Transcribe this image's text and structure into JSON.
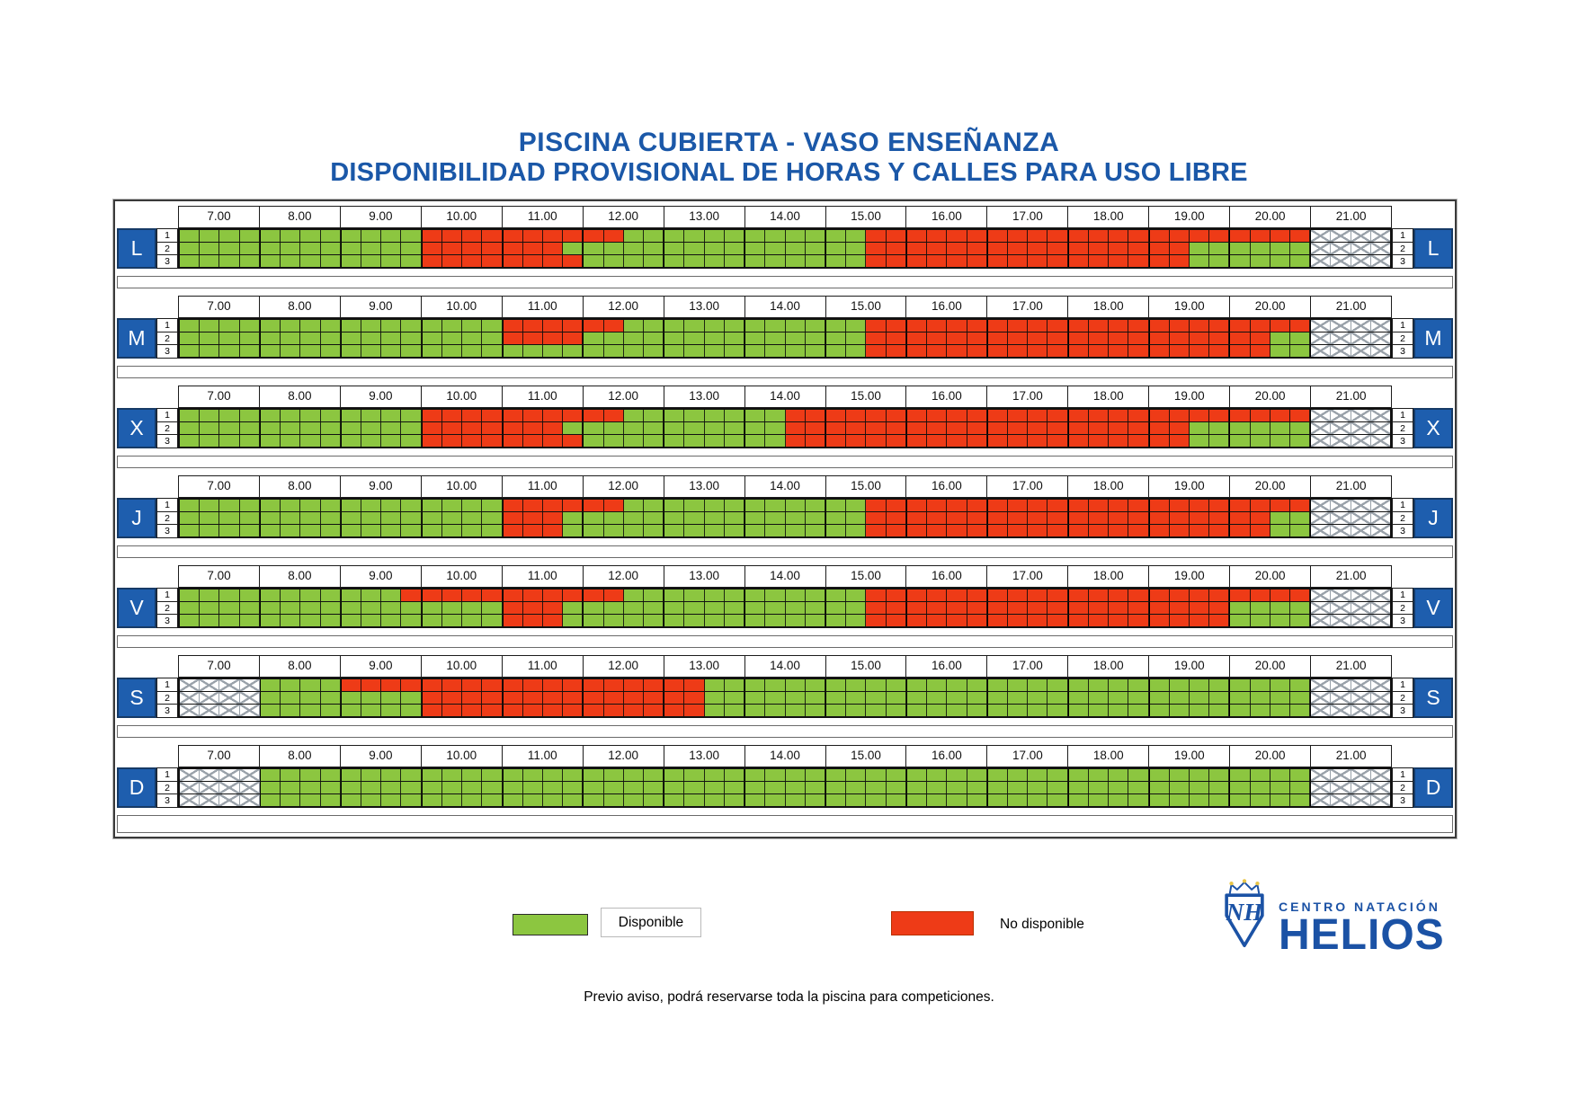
{
  "title": {
    "line1": "PISCINA CUBIERTA - VASO ENSEÑANZA",
    "line2": "DISPONIBILIDAD PROVISIONAL DE HORAS Y CALLES PARA USO LIBRE"
  },
  "colors": {
    "available": "#8CC640",
    "unavailable": "#EE3B17",
    "day_box": "#1E5EAE",
    "title": "#1B58A8",
    "logo": "#1B52A5"
  },
  "hours": [
    "7.00",
    "8.00",
    "9.00",
    "10.00",
    "11.00",
    "12.00",
    "13.00",
    "14.00",
    "15.00",
    "16.00",
    "17.00",
    "18.00",
    "19.00",
    "20.00",
    "21.00"
  ],
  "lanes": [
    "1",
    "2",
    "3"
  ],
  "cell_codes": {
    "G": "available",
    "R": "unavailable",
    "H": "hatched-closed"
  },
  "days": [
    {
      "letter": "L",
      "lanes": [
        "GGGGGGGGGGGGRRRRRRRRRRGGGGGGGGGGGGRRRRRRRRRRRRRRRRRRRRRRHHHH",
        "GGGGGGGGGGGGRRRRRRRGGGGGGGGGGGGGGGRRRRRRRRRRRRRRRRGGGGGGHHHH",
        "GGGGGGGGGGGGRRRRRRRRGGGGGGGGGGGGGGRRRRRRRRRRRRRRRRGGGGGGHHHH"
      ]
    },
    {
      "letter": "M",
      "lanes": [
        "GGGGGGGGGGGGGGGGRRRRRRGGGGGGGGGGGGRRRRRRRRRRRRRRRRRRRRRRHHHH",
        "GGGGGGGGGGGGGGGGRRRRGGGGGGGGGGGGGGRRRRRRRRRRRRRRRRRRRRGGHHHH",
        "GGGGGGGGGGGGGGGGGGGGGGGGGGGGGGGGGGRRRRRRRRRRRRRRRRRRRRGGHHHH"
      ]
    },
    {
      "letter": "X",
      "lanes": [
        "GGGGGGGGGGGGRRRRRRRRRRGGGGGGGGRRRRRRRRRRRRRRRRRRRRRRRRRRHHHH",
        "GGGGGGGGGGGGRRRRRRRGGGGGGGGGGGRRRRRRRRRRRRRRRRRRRRGGGGGGHHHH",
        "GGGGGGGGGGGGRRRRRRRRGGGGGGGGGGRRRRRRRRRRRRRRRRRRRRGGGGGGHHHH"
      ]
    },
    {
      "letter": "J",
      "lanes": [
        "GGGGGGGGGGGGGGGGRRRRRRGGGGGGGGGGGGRRRRRRRRRRRRRRRRRRRRRRHHHH",
        "GGGGGGGGGGGGGGGGRRRGGGGGGGGGGGGGGGRRRRRRRRRRRRRRRRRRRRGGHHHH",
        "GGGGGGGGGGGGGGGGRRRGGGGGGGGGGGGGGGRRRRRRRRRRRRRRRRRRRRGGHHHH"
      ]
    },
    {
      "letter": "V",
      "lanes": [
        "GGGGGGGGGGGRRRRRRRRRRRGGGGGGGGGGGGRRRRRRRRRRRRRRRRRRRRRRHHHH",
        "GGGGGGGGGGGGGGGGRRRGGGGGGGGGGGGGGGRRRRRRRRRRRRRRRRRRGGGGHHHH",
        "GGGGGGGGGGGGGGGGRRRGGGGGGGGGGGGGGGRRRRRRRRRRRRRRRRRRGGGGHHHH"
      ]
    },
    {
      "letter": "S",
      "lanes": [
        "HHHHGGGGRRRRRRRRRRRRRRRRRRGGGGGGGGGGGGGGGGGGGGGGGGGGGGGGHHHH",
        "HHHHGGGGGGGGRRRRRRRRRRRRRRGGGGGGGGGGGGGGGGGGGGGGGGGGGGGGHHHH",
        "HHHHGGGGGGGGRRRRRRRRRRRRRRGGGGGGGGGGGGGGGGGGGGGGGGGGGGGGHHHH"
      ]
    },
    {
      "letter": "D",
      "lanes": [
        "HHHHGGGGGGGGGGGGGGGGGGGGGGGGGGGGGGGGGGGGGGGGGGGGGGGGGGGGHHHH",
        "HHHHGGGGGGGGGGGGGGGGGGGGGGGGGGGGGGGGGGGGGGGGGGGGGGGGGGGGHHHH",
        "HHHHGGGGGGGGGGGGGGGGGGGGGGGGGGGGGGGGGGGGGGGGGGGGGGGGGGGGHHHH"
      ]
    }
  ],
  "legend": {
    "available_label": "Disponible",
    "unavailable_label": "No disponible"
  },
  "note": "Previo aviso, podrá reservarse toda la piscina para competiciones.",
  "logo": {
    "top": "CENTRO NATACIÓN",
    "bottom": "HELIOS",
    "monogram": "NH"
  }
}
